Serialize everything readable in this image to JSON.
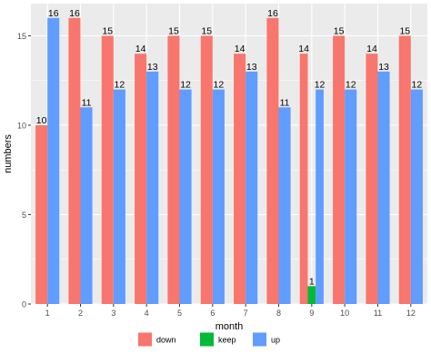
{
  "chart_data": {
    "type": "bar",
    "xlabel": "month",
    "ylabel": "numbers",
    "categories": [
      "1",
      "2",
      "3",
      "4",
      "5",
      "6",
      "7",
      "8",
      "9",
      "10",
      "11",
      "12"
    ],
    "ylim": [
      0,
      16.8
    ],
    "yticks": [
      0,
      5,
      10,
      15
    ],
    "grid": true,
    "legend_position": "bottom",
    "colors": {
      "down": "#F8766D",
      "keep": "#00BA38",
      "up": "#619CFF",
      "panel_bg": "#EBEBEB",
      "grid": "#FFFFFF"
    },
    "series": [
      {
        "name": "down",
        "values": [
          10,
          16,
          15,
          14,
          15,
          15,
          14,
          16,
          14,
          15,
          14,
          15
        ],
        "labels": [
          "10",
          "16",
          "15",
          "14",
          "15",
          "15",
          "14",
          "16",
          "14",
          "15",
          "14",
          "15"
        ]
      },
      {
        "name": "keep",
        "values": [
          null,
          null,
          null,
          null,
          null,
          null,
          null,
          null,
          1,
          null,
          null,
          null
        ],
        "labels": [
          null,
          null,
          null,
          null,
          null,
          null,
          null,
          null,
          "1",
          null,
          null,
          null
        ]
      },
      {
        "name": "up",
        "values": [
          16,
          11,
          12,
          13,
          12,
          12,
          13,
          11,
          12,
          12,
          13,
          12
        ],
        "labels": [
          "16",
          "11",
          "12",
          "13",
          "12",
          "12",
          "13",
          "11",
          "12",
          "12",
          "13",
          "12"
        ]
      }
    ]
  }
}
